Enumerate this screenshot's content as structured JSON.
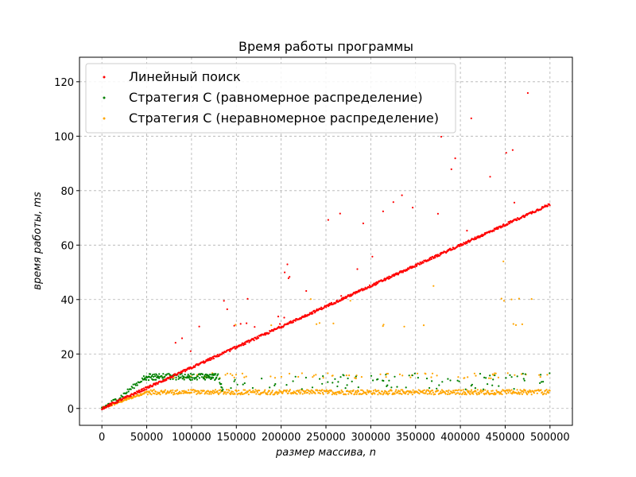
{
  "chart_data": {
    "type": "scatter",
    "title": "Время работы программы",
    "xlabel": "размер массива, n",
    "ylabel": "время работы, ms",
    "xlim": [
      -25000,
      525000
    ],
    "ylim": [
      -6.2,
      129
    ],
    "x_ticks": [
      0,
      50000,
      100000,
      150000,
      200000,
      250000,
      300000,
      350000,
      400000,
      450000,
      500000
    ],
    "y_ticks": [
      0,
      20,
      40,
      60,
      80,
      100,
      120
    ],
    "grid": true,
    "legend_position": "top-left",
    "series": [
      {
        "name": "Линейный поиск",
        "color": "#ff0000",
        "trend": {
          "x": [
            0,
            500000
          ],
          "y": [
            0,
            75
          ]
        },
        "outlier_envelope": {
          "x": [
            70000,
            150000,
            250000,
            350000,
            450000,
            500000
          ],
          "y": [
            22,
            44,
            71,
            92,
            121,
            123
          ]
        }
      },
      {
        "name": "Стратегия С (равномерное распределение)",
        "color": "#008000",
        "trend": {
          "x": [
            0,
            20000,
            50000,
            130000,
            135000,
            500000
          ],
          "y": [
            0,
            4,
            12,
            12,
            7,
            7
          ]
        },
        "noise_band": [
          7,
          13
        ]
      },
      {
        "name": "Стратегия С (неравномерное распределение)",
        "color": "#ffa500",
        "trend": {
          "x": [
            0,
            50000,
            500000
          ],
          "y": [
            0,
            6,
            6
          ]
        },
        "secondary_levels": [
          12,
          30,
          40
        ],
        "outliers": [
          {
            "x": 448000,
            "y": 54
          },
          {
            "x": 370000,
            "y": 45
          }
        ]
      }
    ]
  }
}
